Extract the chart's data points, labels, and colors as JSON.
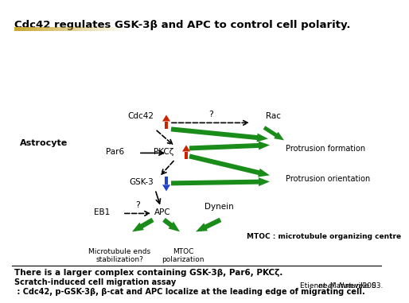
{
  "title": "Cdc42 regulates GSK-3β and APC to control cell polarity.",
  "bg_color": "#ffffff",
  "gold_bar_color": "#c8a832",
  "bottom_text1": "There is a larger complex containing GSK-3β, Par6, PKCζ.",
  "bottom_text2": "Scratch-induced cell migration assay\n : Cdc42, p-GSK-3β, β-cat and APC localize at the leading edge of migrating cell.",
  "citation": "Etienne-Manneville S et al. Nature, 2003.",
  "green": "#1a8c1a",
  "red": "#cc2200",
  "blue": "#2244cc"
}
